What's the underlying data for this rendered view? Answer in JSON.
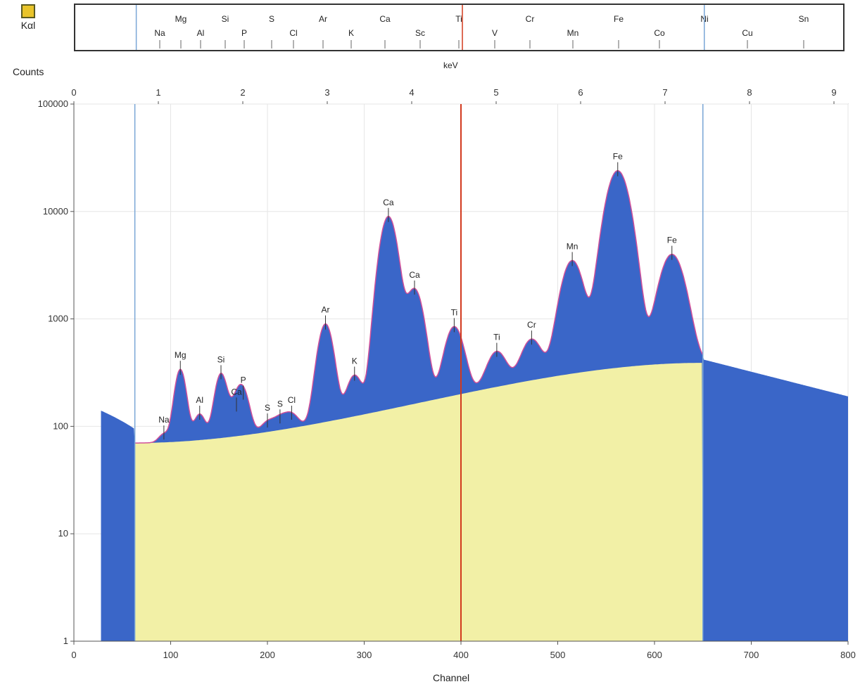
{
  "legend_icon": {
    "name": "kxl-icon",
    "label": "Kαl"
  },
  "element_ruler": [
    "Na",
    "Mg",
    "Al",
    "Si",
    "P",
    "S",
    "Cl",
    "Ar",
    "K",
    "Ca",
    "Sc",
    "Ti",
    "V",
    "Cr",
    "Mn",
    "Fe",
    "Co",
    "Ni",
    "Cu",
    "Sn"
  ],
  "colors": {
    "spectrum": "#3a66c8",
    "background_fill": "#f2f0a6",
    "fit_line": "#d0509a",
    "roi_line": "#7aa6d6",
    "cursor_line": "#d23a1e"
  },
  "chart_data": {
    "type": "area",
    "title": "",
    "xlabel": "Channel",
    "ylabel": "Counts",
    "x_top_label": "keV",
    "xlim": [
      0,
      800
    ],
    "ylim": [
      1,
      100000
    ],
    "y_scale": "log",
    "x_ticks": [
      "0",
      "100",
      "200",
      "300",
      "400",
      "500",
      "600",
      "700",
      "800"
    ],
    "x_top_ticks": [
      "0",
      "1",
      "2",
      "3",
      "4",
      "5",
      "6",
      "7",
      "8",
      "9"
    ],
    "y_ticks": [
      "1",
      "10",
      "100",
      "1000",
      "10000",
      "100000"
    ],
    "grid": true,
    "roi_lines_channel": [
      63,
      650
    ],
    "cursor_channel": 400,
    "peaks": [
      {
        "label": "Na",
        "channel": 93,
        "counts": 85
      },
      {
        "label": "Mg",
        "channel": 110,
        "counts": 340
      },
      {
        "label": "Al",
        "channel": 130,
        "counts": 130
      },
      {
        "label": "Si",
        "channel": 152,
        "counts": 310
      },
      {
        "label": "Ca",
        "channel": 168,
        "counts": 155
      },
      {
        "label": "P",
        "channel": 175,
        "counts": 200
      },
      {
        "label": "S",
        "channel": 200,
        "counts": 110
      },
      {
        "label": "S",
        "channel": 213,
        "counts": 120
      },
      {
        "label": "Cl",
        "channel": 225,
        "counts": 130
      },
      {
        "label": "Ar",
        "channel": 260,
        "counts": 900
      },
      {
        "label": "K",
        "channel": 290,
        "counts": 300
      },
      {
        "label": "Ca",
        "channel": 325,
        "counts": 9000
      },
      {
        "label": "Ca",
        "channel": 352,
        "counts": 1900
      },
      {
        "label": "Ti",
        "channel": 393,
        "counts": 850
      },
      {
        "label": "Ti",
        "channel": 437,
        "counts": 500
      },
      {
        "label": "Cr",
        "channel": 473,
        "counts": 650
      },
      {
        "label": "Mn",
        "channel": 515,
        "counts": 3500
      },
      {
        "label": "Fe",
        "channel": 562,
        "counts": 24000
      },
      {
        "label": "Fe",
        "channel": 618,
        "counts": 4000
      }
    ],
    "background": {
      "start_channel": 63,
      "end_channel": 650,
      "counts_at_start": 70,
      "counts_at_end": 390
    },
    "continuum_after_roi": {
      "start_channel": 650,
      "end_channel": 800,
      "counts_at_start": 420,
      "counts_at_end": 190
    }
  }
}
